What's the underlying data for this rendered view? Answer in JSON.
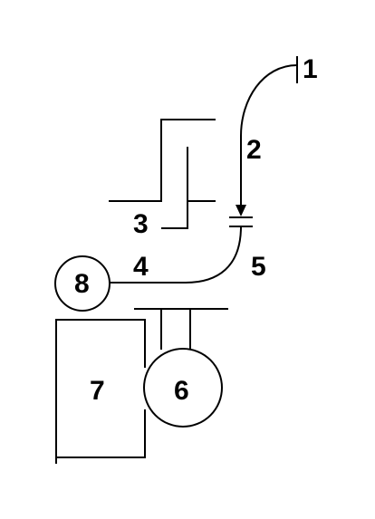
{
  "diagram": {
    "labels": {
      "l1": "1",
      "l2": "2",
      "l3": "3",
      "l4": "4",
      "l5": "5",
      "l6": "6",
      "l7": "7",
      "l8": "8"
    },
    "colors": {
      "line": "#000000",
      "background": "#ffffff"
    }
  }
}
